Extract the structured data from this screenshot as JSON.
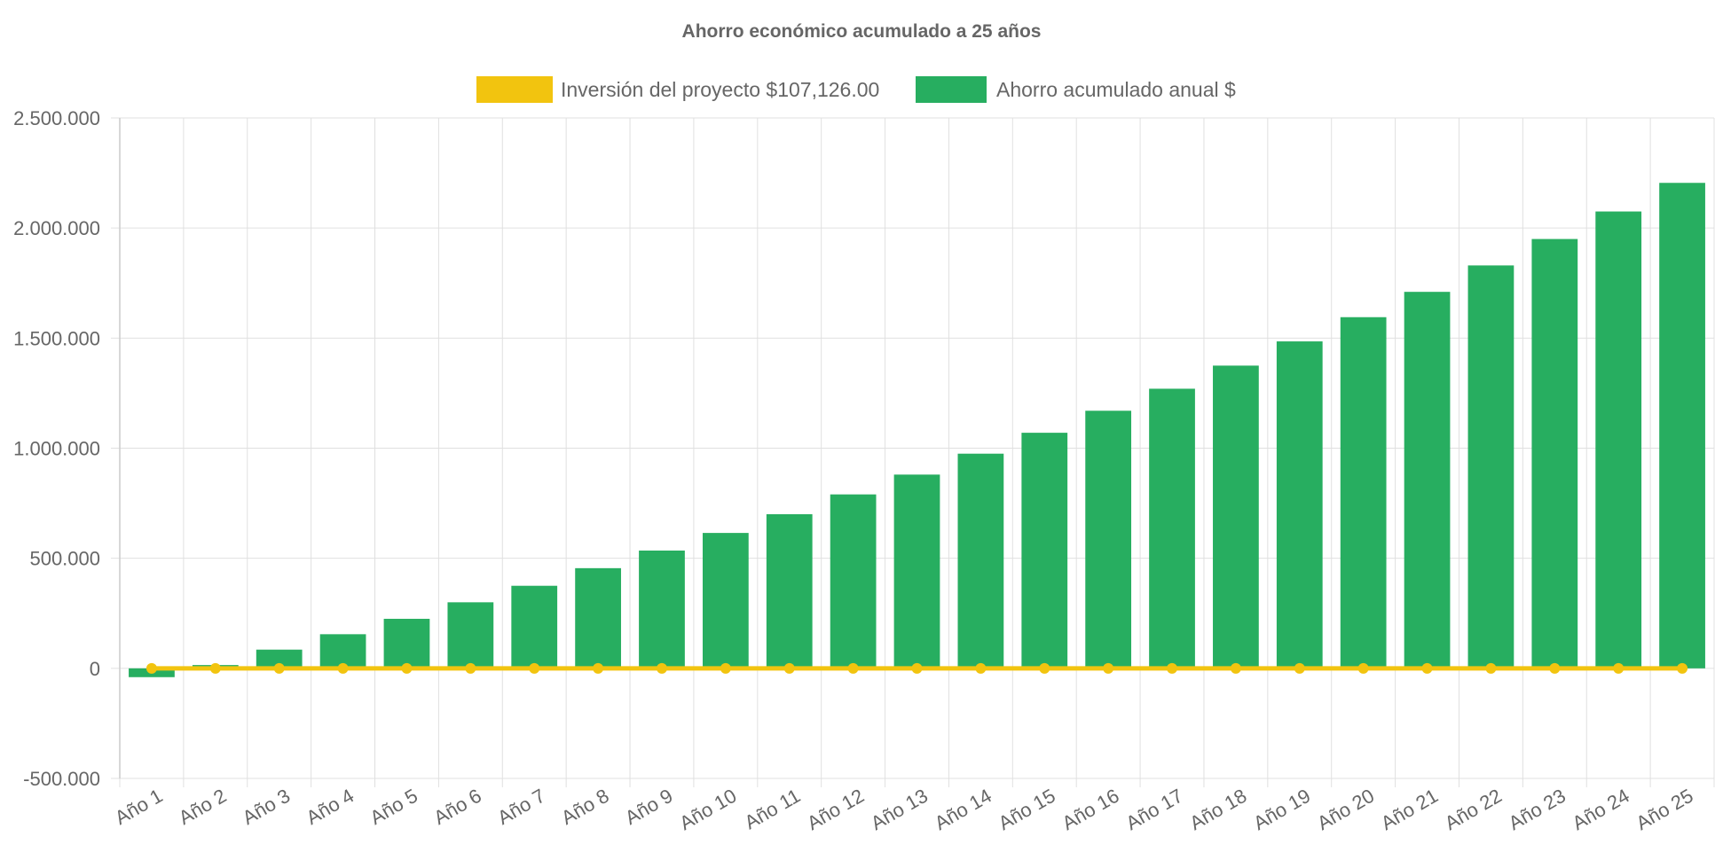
{
  "chart_data": {
    "type": "bar",
    "title": "Ahorro económico acumulado a 25 años",
    "xlabel": "",
    "ylabel": "",
    "categories": [
      "Año 1",
      "Año 2",
      "Año 3",
      "Año 4",
      "Año 5",
      "Año 6",
      "Año 7",
      "Año 8",
      "Año 9",
      "Año 10",
      "Año 11",
      "Año 12",
      "Año 13",
      "Año 14",
      "Año 15",
      "Año 16",
      "Año 17",
      "Año 18",
      "Año 19",
      "Año 20",
      "Año 21",
      "Año 22",
      "Año 23",
      "Año 24",
      "Año 25"
    ],
    "y_ticks": [
      "-500.000",
      "0",
      "500.000",
      "1.000.000",
      "1.500.000",
      "2.000.000",
      "2.500.000"
    ],
    "y_tick_values": [
      -500000,
      0,
      500000,
      1000000,
      1500000,
      2000000,
      2500000
    ],
    "ylim": [
      -500000,
      2500000
    ],
    "grid": true,
    "legend_position": "top-center",
    "series": [
      {
        "name": "Inversión del proyecto $107,126.00",
        "type": "line",
        "color": "#f2c40f",
        "values": [
          0,
          0,
          0,
          0,
          0,
          0,
          0,
          0,
          0,
          0,
          0,
          0,
          0,
          0,
          0,
          0,
          0,
          0,
          0,
          0,
          0,
          0,
          0,
          0,
          0
        ]
      },
      {
        "name": "Ahorro acumulado anual $",
        "type": "bar",
        "color": "#27ae60",
        "values": [
          -40000,
          15000,
          85000,
          155000,
          225000,
          300000,
          375000,
          455000,
          535000,
          615000,
          700000,
          790000,
          880000,
          975000,
          1070000,
          1170000,
          1270000,
          1375000,
          1485000,
          1595000,
          1710000,
          1830000,
          1950000,
          2075000,
          2205000
        ]
      }
    ]
  },
  "colors": {
    "grid": "#e0e0e0",
    "axis": "#cccccc",
    "text": "#666666"
  }
}
